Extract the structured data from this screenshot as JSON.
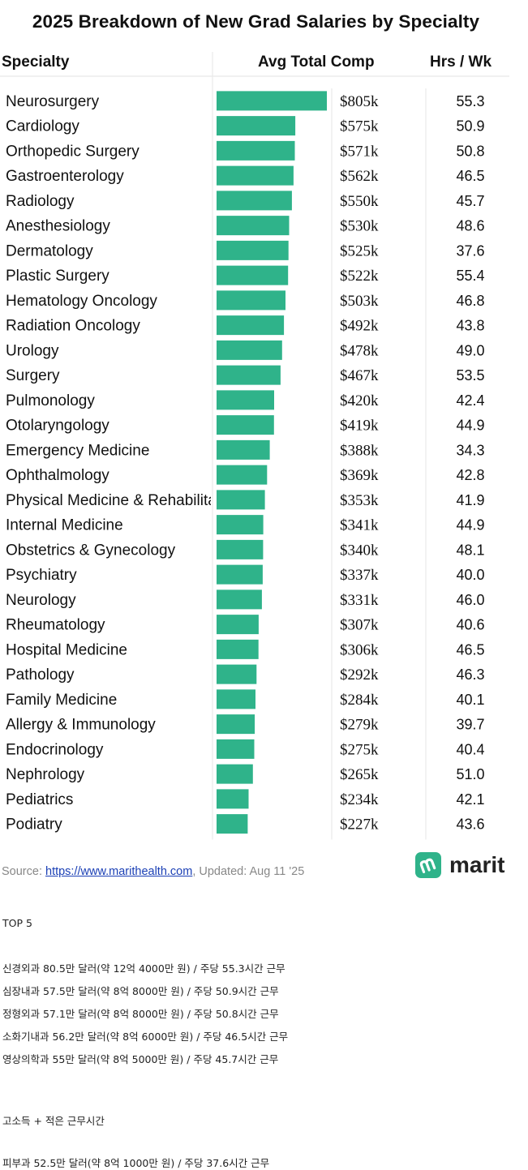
{
  "chart_data": {
    "type": "bar",
    "title": "2025 Breakdown of New Grad Salaries by Specialty",
    "columns": {
      "specialty": "Specialty",
      "comp": "Avg Total Comp",
      "hours": "Hrs / Wk"
    },
    "categories": [
      "Neurosurgery",
      "Cardiology",
      "Orthopedic Surgery",
      "Gastroenterology",
      "Radiology",
      "Anesthesiology",
      "Dermatology",
      "Plastic Surgery",
      "Hematology Oncology",
      "Radiation Oncology",
      "Urology",
      "Surgery",
      "Pulmonology",
      "Otolaryngology",
      "Emergency Medicine",
      "Ophthalmology",
      "Physical Medicine & Rehabilitation",
      "Internal Medicine",
      "Obstetrics & Gynecology",
      "Psychiatry",
      "Neurology",
      "Rheumatology",
      "Hospital Medicine",
      "Pathology",
      "Family Medicine",
      "Allergy & Immunology",
      "Endocrinology",
      "Nephrology",
      "Pediatrics",
      "Podiatry"
    ],
    "values": [
      805,
      575,
      571,
      562,
      550,
      530,
      525,
      522,
      503,
      492,
      478,
      467,
      420,
      419,
      388,
      369,
      353,
      341,
      340,
      337,
      331,
      307,
      306,
      292,
      284,
      279,
      275,
      265,
      234,
      227
    ],
    "value_labels": [
      "$805k",
      "$575k",
      "$571k",
      "$562k",
      "$550k",
      "$530k",
      "$525k",
      "$522k",
      "$503k",
      "$492k",
      "$478k",
      "$467k",
      "$420k",
      "$419k",
      "$388k",
      "$369k",
      "$353k",
      "$341k",
      "$340k",
      "$337k",
      "$331k",
      "$307k",
      "$306k",
      "$292k",
      "$284k",
      "$279k",
      "$275k",
      "$265k",
      "$234k",
      "$227k"
    ],
    "hours": [
      "55.3",
      "50.9",
      "50.8",
      "46.5",
      "45.7",
      "48.6",
      "37.6",
      "55.4",
      "46.8",
      "43.8",
      "49.0",
      "53.5",
      "42.4",
      "44.9",
      "34.3",
      "42.8",
      "41.9",
      "44.9",
      "48.1",
      "40.0",
      "46.0",
      "40.6",
      "46.5",
      "46.3",
      "40.1",
      "39.7",
      "40.4",
      "51.0",
      "42.1",
      "43.6"
    ],
    "bar_color": "#2fb38a",
    "grid": false
  },
  "source": {
    "prefix": "Source: ",
    "link": "https://www.marithealth.com",
    "suffix": ", Updated: Aug 11 '25"
  },
  "logo": {
    "text": "marit",
    "icon": "marit-logo-icon",
    "color": "#2fb38a"
  },
  "notes": {
    "top5_heading": "TOP 5",
    "top5": [
      "신경외과 80.5만 달러(약 12억 4000만 원) / 주당 55.3시간 근무",
      "심장내과 57.5만 달러(약 8억 8000만 원) / 주당 50.9시간 근무",
      "정형외과 57.1만 달러(약 8억 8000만 원) / 주당 50.8시간 근무",
      "소화기내과 56.2만 달러(약 8억 6000만 원) / 주당 46.5시간 근무",
      "영상의학과 55만 달러(약 8억 5000만 원) / 주당 45.7시간 근무"
    ],
    "second_heading": "고소득 + 적은 근무시간",
    "second": [
      "피부과 52.5만 달러(약 8억 1000만 원) / 주당 37.6시간 근무"
    ]
  }
}
